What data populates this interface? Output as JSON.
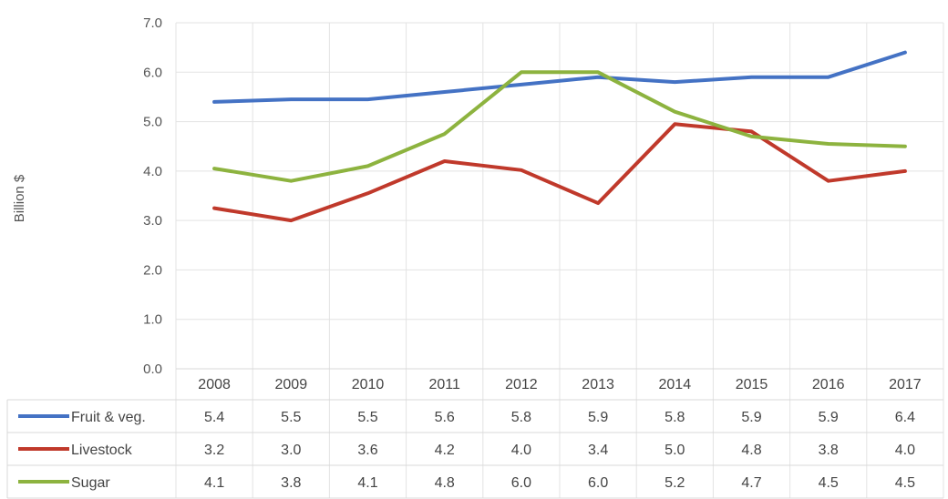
{
  "chart_data": {
    "type": "line",
    "ylabel": "Billion $",
    "ylim": [
      0,
      7
    ],
    "yticks": [
      "0.0",
      "1.0",
      "2.0",
      "3.0",
      "4.0",
      "5.0",
      "6.0",
      "7.0"
    ],
    "categories": [
      "2008",
      "2009",
      "2010",
      "2011",
      "2012",
      "2013",
      "2014",
      "2015",
      "2016",
      "2017"
    ],
    "grid": true,
    "legend": "data-table",
    "series": [
      {
        "name": "Fruit & veg.",
        "color": "#4472C4",
        "labels": [
          "5.4",
          "5.5",
          "5.5",
          "5.6",
          "5.8",
          "5.9",
          "5.8",
          "5.9",
          "5.9",
          "6.4"
        ],
        "values": [
          5.4,
          5.45,
          5.45,
          5.6,
          5.75,
          5.9,
          5.8,
          5.9,
          5.9,
          6.4
        ]
      },
      {
        "name": "Livestock",
        "color": "#C0392B",
        "labels": [
          "3.2",
          "3.0",
          "3.6",
          "4.2",
          "4.0",
          "3.4",
          "5.0",
          "4.8",
          "3.8",
          "4.0"
        ],
        "values": [
          3.25,
          3.0,
          3.55,
          4.2,
          4.02,
          3.35,
          4.95,
          4.8,
          3.8,
          4.0
        ]
      },
      {
        "name": "Sugar",
        "color": "#8DB33F",
        "labels": [
          "4.1",
          "3.8",
          "4.1",
          "4.8",
          "6.0",
          "6.0",
          "5.2",
          "4.7",
          "4.5",
          "4.5"
        ],
        "values": [
          4.05,
          3.8,
          4.1,
          4.75,
          6.0,
          6.0,
          5.2,
          4.7,
          4.55,
          4.5
        ]
      }
    ]
  }
}
